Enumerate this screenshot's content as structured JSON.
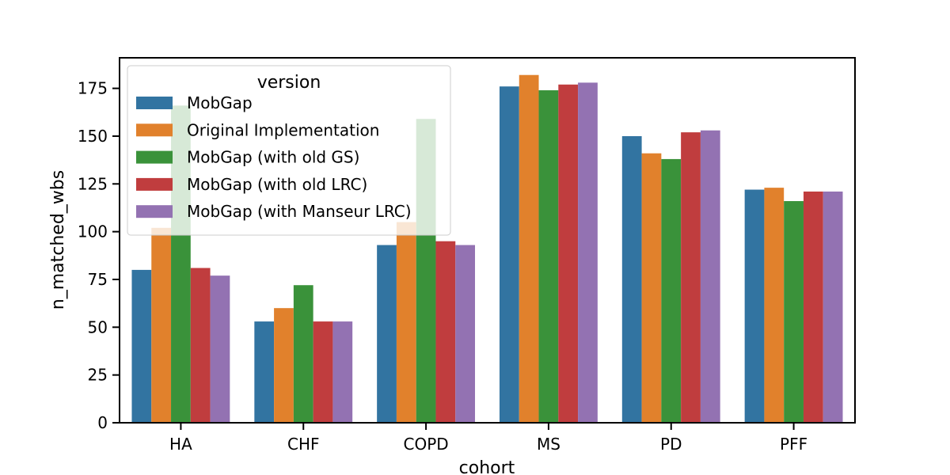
{
  "chart_data": {
    "type": "bar",
    "xlabel": "cohort",
    "ylabel": "n_matched_wbs",
    "ylim": [
      0,
      191
    ],
    "yticks": [
      0,
      25,
      50,
      75,
      100,
      125,
      150,
      175
    ],
    "categories": [
      "HA",
      "CHF",
      "COPD",
      "MS",
      "PD",
      "PFF"
    ],
    "legend": {
      "title": "version",
      "position": "upper-left"
    },
    "grid": false,
    "series": [
      {
        "name": "MobGap",
        "color": "#3274a1",
        "values": [
          80,
          53,
          93,
          176,
          150,
          122
        ]
      },
      {
        "name": "Original Implementation",
        "color": "#e1812c",
        "values": [
          102,
          60,
          105,
          182,
          141,
          123
        ]
      },
      {
        "name": "MobGap (with old GS)",
        "color": "#3a923a",
        "values": [
          166,
          72,
          159,
          174,
          138,
          116
        ]
      },
      {
        "name": "MobGap (with old LRC)",
        "color": "#c03d3e",
        "values": [
          81,
          53,
          95,
          177,
          152,
          121
        ]
      },
      {
        "name": "MobGap (with Manseur LRC)",
        "color": "#9372b2",
        "values": [
          77,
          53,
          93,
          178,
          153,
          121
        ]
      }
    ]
  }
}
